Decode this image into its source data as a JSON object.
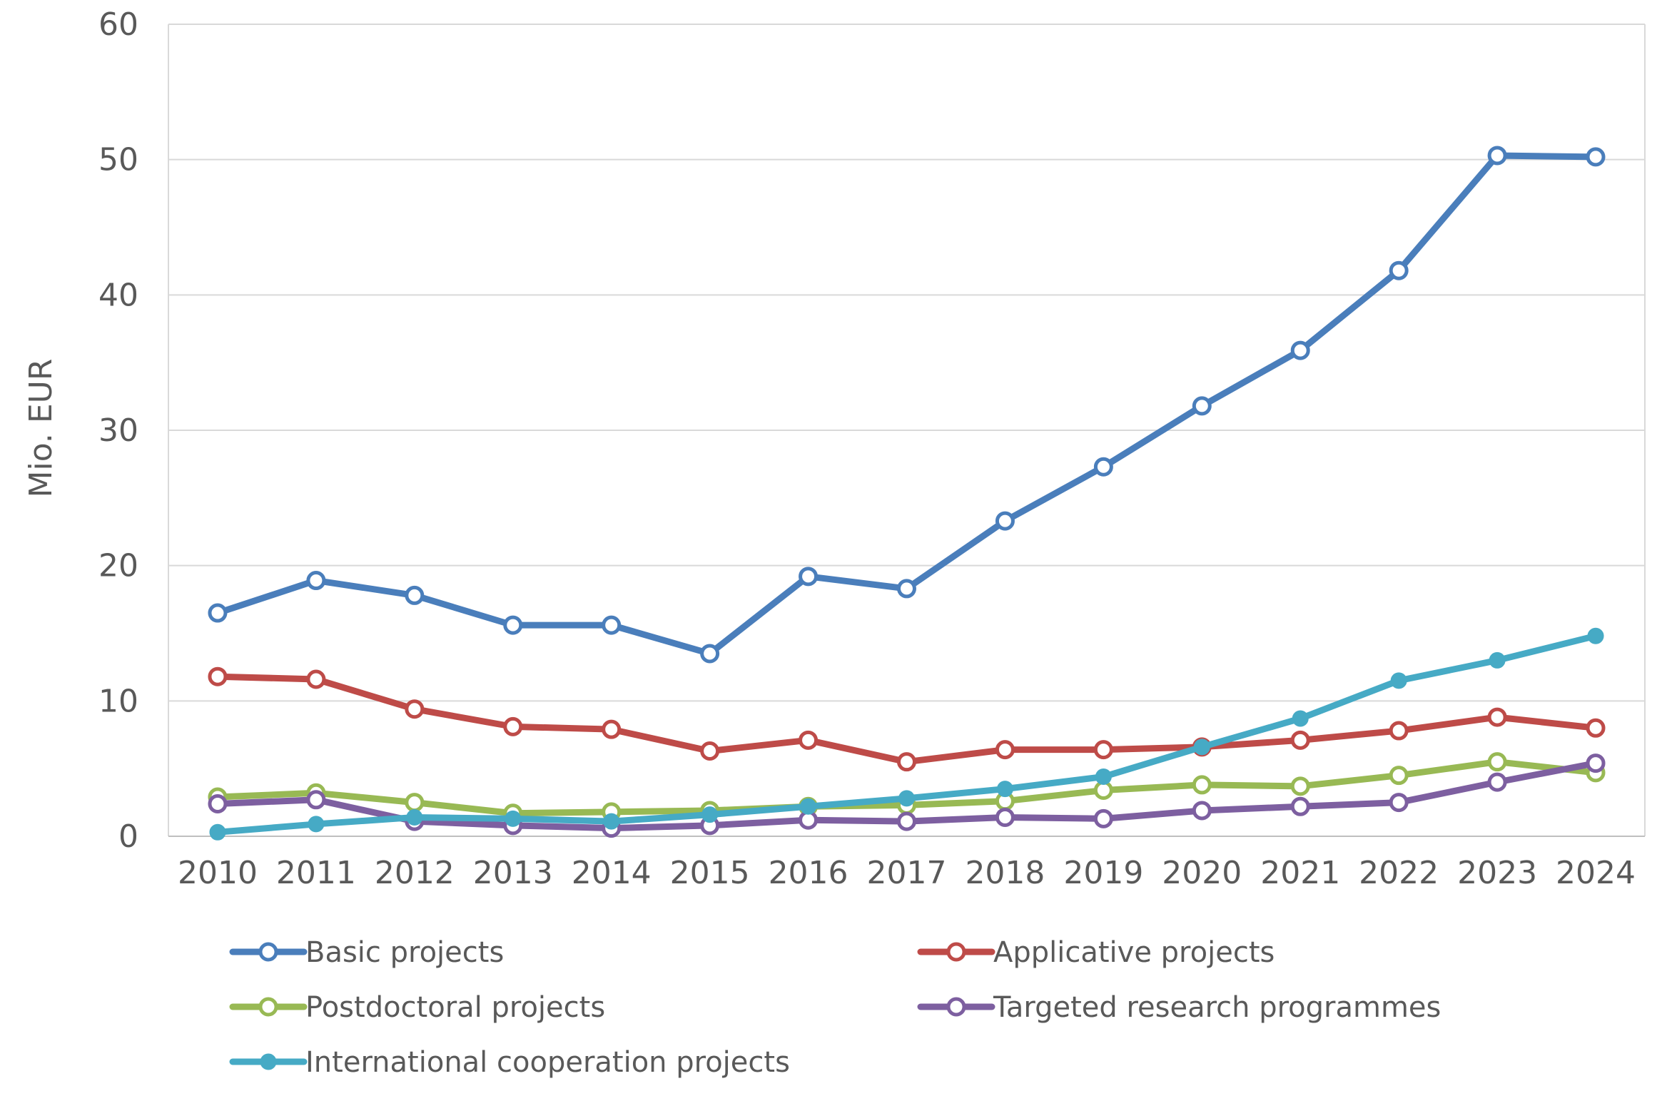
{
  "chart_data": {
    "type": "line",
    "title": "",
    "xlabel": "",
    "ylabel": "Mio. EUR",
    "ylim": [
      0,
      60
    ],
    "yticks": [
      0,
      10,
      20,
      30,
      40,
      50,
      60
    ],
    "grid": true,
    "legend_position": "bottom",
    "categories": [
      "2010",
      "2011",
      "2012",
      "2013",
      "2014",
      "2015",
      "2016",
      "2017",
      "2018",
      "2019",
      "2020",
      "2021",
      "2022",
      "2023",
      "2024"
    ],
    "series": [
      {
        "name": "Basic projects",
        "color": "#4A7EBB",
        "marker": "open-circle",
        "values": [
          16.5,
          18.9,
          17.8,
          15.6,
          15.6,
          13.5,
          19.2,
          18.3,
          23.3,
          27.3,
          31.8,
          35.9,
          41.8,
          50.3,
          50.2
        ]
      },
      {
        "name": "Applicative projects",
        "color": "#BE4B48",
        "marker": "open-circle",
        "values": [
          11.8,
          11.6,
          9.4,
          8.1,
          7.9,
          6.3,
          7.1,
          5.5,
          6.4,
          6.4,
          6.6,
          7.1,
          7.8,
          8.8,
          8.0
        ]
      },
      {
        "name": "Postdoctoral projects",
        "color": "#98B954",
        "marker": "open-circle",
        "values": [
          2.9,
          3.2,
          2.5,
          1.7,
          1.8,
          1.9,
          2.2,
          2.3,
          2.6,
          3.4,
          3.8,
          3.7,
          4.5,
          5.5,
          4.7
        ]
      },
      {
        "name": "Targeted research programmes",
        "color": "#7D5FA0",
        "marker": "open-circle",
        "values": [
          2.4,
          2.7,
          1.1,
          0.8,
          0.6,
          0.8,
          1.2,
          1.1,
          1.4,
          1.3,
          1.9,
          2.2,
          2.5,
          4.0,
          5.4
        ]
      },
      {
        "name": "International cooperation projects",
        "color": "#46AAC5",
        "marker": "filled-circle",
        "values": [
          0.3,
          0.9,
          1.4,
          1.3,
          1.1,
          1.6,
          2.2,
          2.8,
          3.5,
          4.4,
          6.6,
          8.7,
          11.5,
          13.0,
          14.8
        ]
      }
    ]
  }
}
